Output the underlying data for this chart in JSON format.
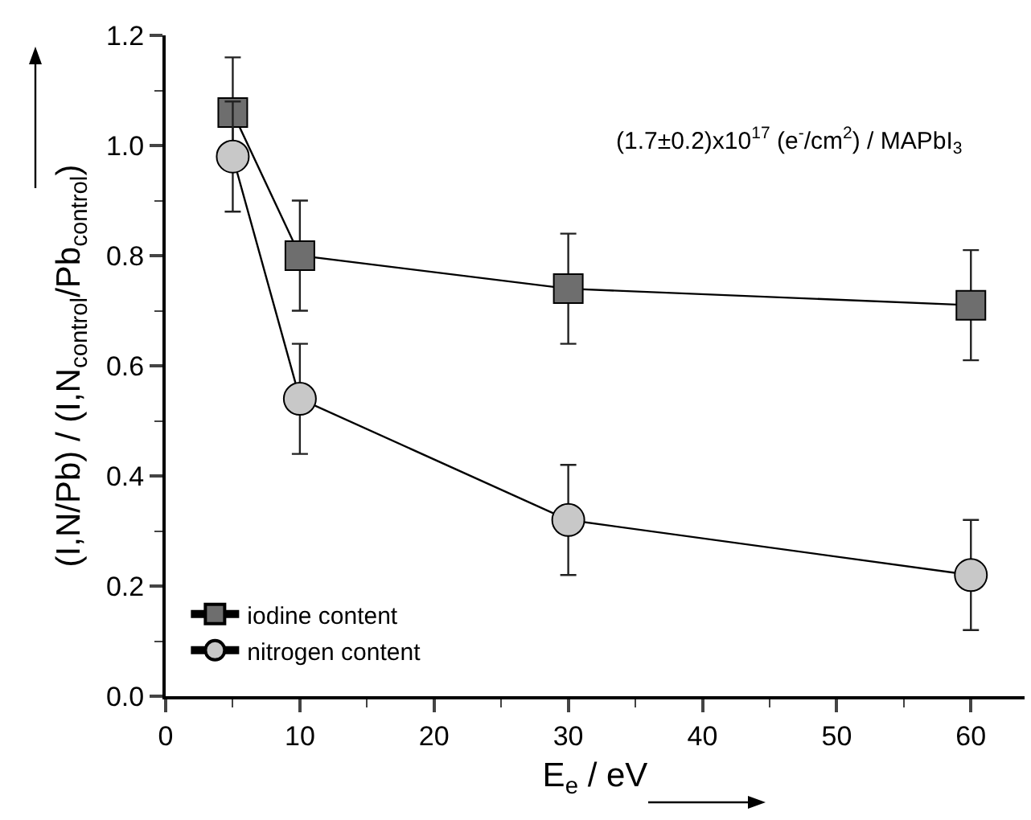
{
  "chart_data": {
    "type": "line",
    "xlabel": "E$_{e}$ / eV",
    "ylabel": "(I,N/Pb) / (I,N$_{control}$/Pb$_{control}$)",
    "annotations": [
      "(1.7±0.2)x10$^{17}$ (e$^{-}$/cm$^{2}$) / MAPbI$_{3}$"
    ],
    "x": [
      5,
      10,
      30,
      60
    ],
    "series": [
      {
        "name": "iodine content",
        "color": "#6e6e6e",
        "marker": "square",
        "values": [
          1.06,
          0.8,
          0.74,
          0.71
        ],
        "errors": [
          0.1,
          0.1,
          0.1,
          0.1
        ]
      },
      {
        "name": "nitrogen content",
        "color": "#c8c8c8",
        "marker": "circle",
        "values": [
          0.98,
          0.54,
          0.32,
          0.22
        ],
        "errors": [
          0.1,
          0.1,
          0.1,
          0.1
        ]
      }
    ],
    "xlim": [
      0,
      64
    ],
    "xticks": [
      0,
      10,
      20,
      30,
      40,
      50,
      60
    ],
    "ylim": [
      0,
      1.2
    ],
    "yticks": [
      {
        "value": 0,
        "label": "0.0"
      },
      {
        "value": 0.2,
        "label": "0.2"
      },
      {
        "value": 0.4,
        "label": "0.4"
      },
      {
        "value": 0.6,
        "label": "0.6"
      },
      {
        "value": 0.8,
        "label": "0.8"
      },
      {
        "value": 1.0,
        "label": "1.0"
      },
      {
        "value": 1.2,
        "label": "1.2"
      }
    ],
    "grid": false,
    "legend": "bottom left",
    "line_style": "solid"
  }
}
